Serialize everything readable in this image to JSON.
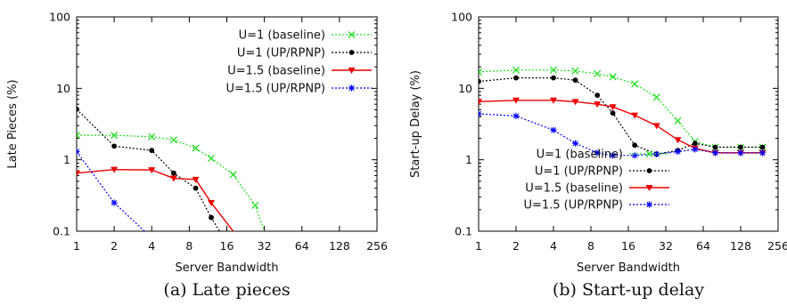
{
  "chart_data": [
    {
      "type": "line",
      "caption": "(a) Late pieces",
      "xlabel": "Server Bandwidth",
      "ylabel": "Late Pieces (%)",
      "x_scale": "log2",
      "y_scale": "log10",
      "xlim": [
        1,
        256
      ],
      "ylim": [
        0.1,
        100
      ],
      "x_ticks": [
        1,
        2,
        4,
        8,
        16,
        32,
        64,
        128,
        256
      ],
      "y_ticks": [
        0.1,
        1,
        10,
        100
      ],
      "x_tick_labels": [
        "1",
        "2",
        "4",
        "8",
        "16",
        "32",
        "64",
        "128",
        "256"
      ],
      "y_tick_labels": [
        "0.1",
        "1",
        "10",
        "100"
      ],
      "legend_position": "top-right",
      "series": [
        {
          "name": "U=1 (baseline)",
          "color": "#22dd22",
          "marker": "x",
          "dash": "dotted",
          "x": [
            1,
            2,
            4,
            6,
            9,
            12,
            18,
            27,
            32
          ],
          "y": [
            2.2,
            2.2,
            2.1,
            1.9,
            1.45,
            1.05,
            0.62,
            0.23,
            0.1
          ]
        },
        {
          "name": "U=1 (UP/RPNP)",
          "color": "#000000",
          "marker": "circle",
          "dash": "dotted",
          "x": [
            1,
            2,
            4,
            6,
            9,
            12,
            14
          ],
          "y": [
            5.1,
            1.55,
            1.35,
            0.65,
            0.4,
            0.155,
            0.1
          ]
        },
        {
          "name": "U=1.5 (baseline)",
          "color": "#ee0000",
          "marker": "triangle-down",
          "dash": "solid",
          "x": [
            1,
            2,
            4,
            6,
            9,
            12,
            18
          ],
          "y": [
            0.65,
            0.73,
            0.72,
            0.55,
            0.53,
            0.25,
            0.1
          ]
        },
        {
          "name": "U=1.5 (UP/RPNP)",
          "color": "#0000ff",
          "marker": "star",
          "dash": "dotted",
          "x": [
            1,
            2,
            3.5
          ],
          "y": [
            1.3,
            0.25,
            0.1
          ]
        }
      ]
    },
    {
      "type": "line",
      "caption": "(b) Start-up delay",
      "xlabel": "Server Bandwidth",
      "ylabel": "Start-up Delay (%)",
      "x_scale": "log2",
      "y_scale": "log10",
      "xlim": [
        1,
        256
      ],
      "ylim": [
        0.1,
        100
      ],
      "x_ticks": [
        1,
        2,
        4,
        8,
        16,
        32,
        64,
        128,
        256
      ],
      "y_ticks": [
        0.1,
        1,
        10,
        100
      ],
      "x_tick_labels": [
        "1",
        "2",
        "4",
        "8",
        "16",
        "32",
        "64",
        "128",
        "256"
      ],
      "y_tick_labels": [
        "0.1",
        "1",
        "10",
        "100"
      ],
      "legend_position": "bottom-left",
      "series": [
        {
          "name": "U=1 (baseline)",
          "color": "#22dd22",
          "marker": "x",
          "dash": "dotted",
          "x": [
            1,
            2,
            4,
            6,
            9,
            12,
            18,
            27,
            40,
            55,
            80,
            128,
            192
          ],
          "y": [
            17,
            18,
            18,
            17.5,
            16,
            14.5,
            11.5,
            7.5,
            3.5,
            1.8,
            1.5,
            1.5,
            1.5
          ]
        },
        {
          "name": "U=1 (UP/RPNP)",
          "color": "#000000",
          "marker": "circle",
          "dash": "dotted",
          "x": [
            1,
            2,
            4,
            6,
            9,
            12,
            18,
            27,
            40,
            55,
            80,
            128,
            192
          ],
          "y": [
            12.5,
            14,
            14,
            13,
            8,
            4.5,
            1.6,
            1.2,
            1.35,
            1.7,
            1.5,
            1.5,
            1.5
          ]
        },
        {
          "name": "U=1.5 (baseline)",
          "color": "#ee0000",
          "marker": "triangle-down",
          "dash": "solid",
          "x": [
            1,
            2,
            4,
            6,
            9,
            12,
            18,
            27,
            40,
            55,
            80,
            128,
            192
          ],
          "y": [
            6.5,
            6.8,
            6.8,
            6.5,
            6,
            5.5,
            4.2,
            3,
            1.9,
            1.45,
            1.25,
            1.25,
            1.25
          ]
        },
        {
          "name": "U=1.5 (UP/RPNP)",
          "color": "#0000ff",
          "marker": "star",
          "dash": "dotted",
          "x": [
            1,
            2,
            4,
            6,
            9,
            12,
            18,
            27,
            40,
            55,
            80,
            128,
            192
          ],
          "y": [
            4.4,
            4.1,
            2.6,
            1.7,
            1.25,
            1.15,
            1.15,
            1.2,
            1.3,
            1.4,
            1.25,
            1.25,
            1.25
          ]
        }
      ]
    }
  ]
}
